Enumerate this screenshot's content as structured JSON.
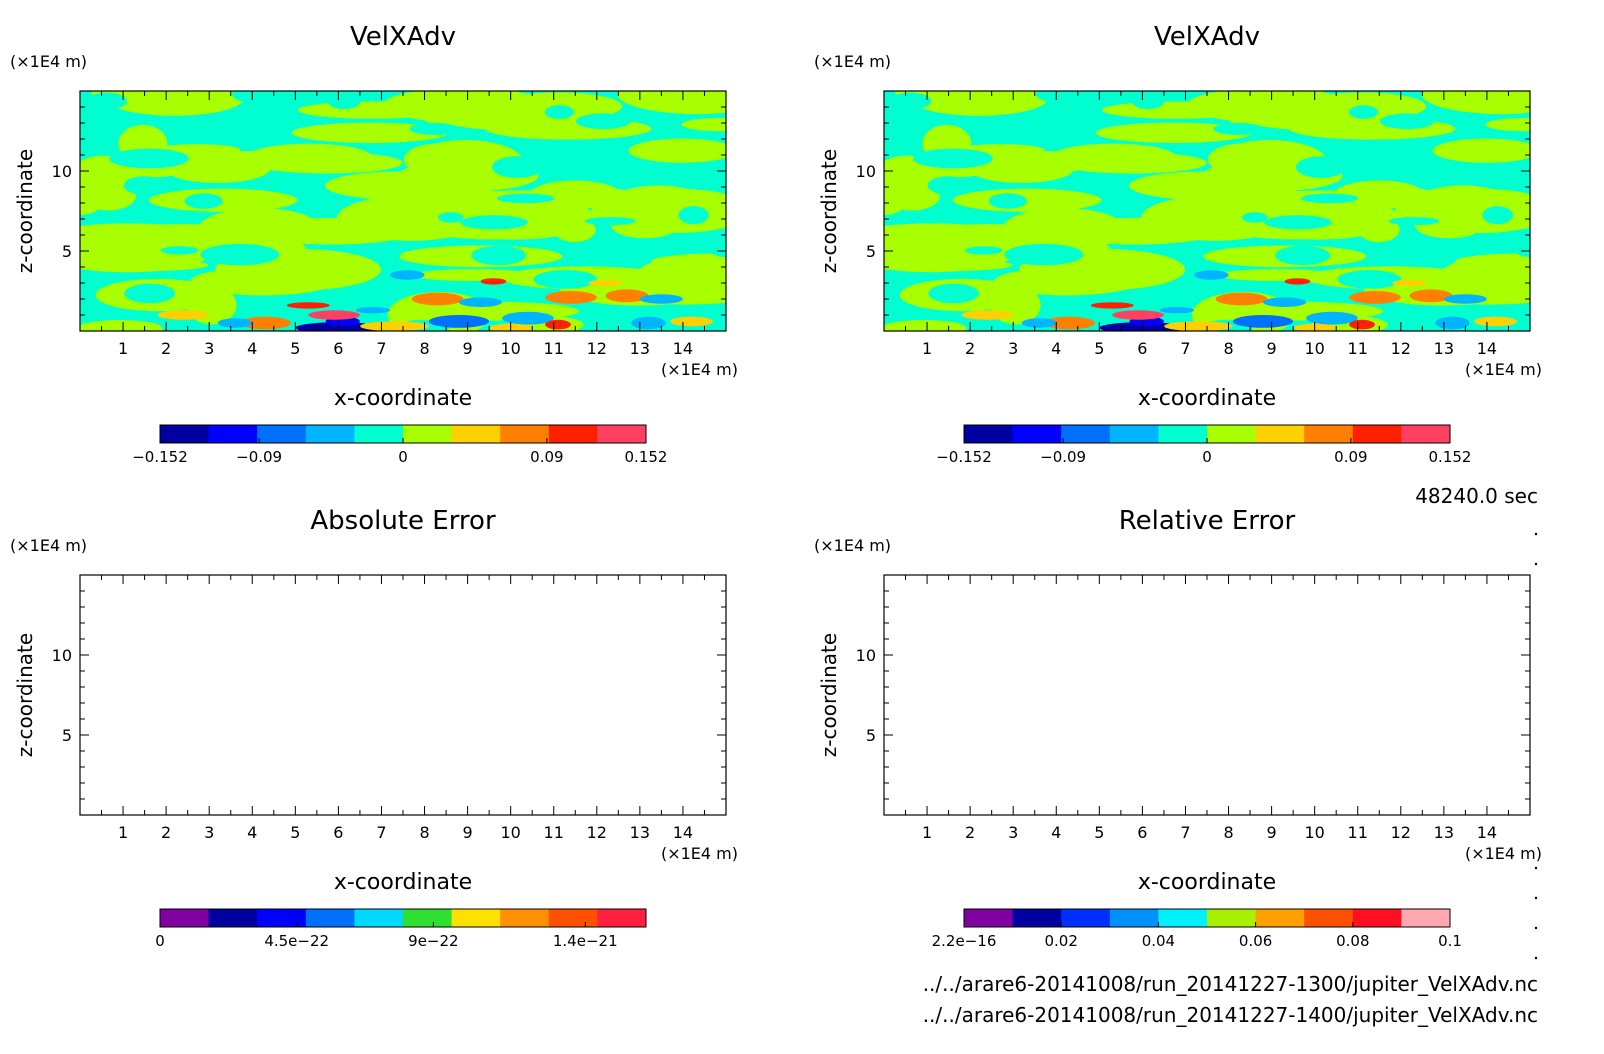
{
  "footer": {
    "time": "48240.0 sec",
    "file1": "../../arare6-20141008/run_20141227-1300/jupiter_VelXAdv.nc",
    "file2": "../../arare6-20141008/run_20141227-1400/jupiter_VelXAdv.nc"
  },
  "chart_data": [
    {
      "type": "heatmap",
      "title": "VelXAdv",
      "xlabel": "x-coordinate",
      "ylabel": "z-coordinate",
      "x_unit_label": "(×1E4 m)",
      "y_unit_label": "(×1E4 m)",
      "xlim": [
        0,
        15
      ],
      "ylim": [
        0,
        15
      ],
      "x_ticks": [
        "1",
        "2",
        "3",
        "4",
        "5",
        "6",
        "7",
        "8",
        "9",
        "10",
        "11",
        "12",
        "13",
        "14"
      ],
      "y_ticks": [
        "5",
        "10"
      ],
      "colorbar": {
        "colors": [
          "#0000a0",
          "#0000ff",
          "#0070ff",
          "#00b4ff",
          "#00ffd0",
          "#a8ff00",
          "#ffd000",
          "#ff8000",
          "#ff2000",
          "#ff4060"
        ],
        "tick_labels": [
          "−0.152",
          "−0.09",
          "0",
          "0.09",
          "0.152"
        ],
        "tick_values": [
          -0.152,
          -0.09,
          0,
          0.09,
          0.152
        ],
        "range": [
          -0.152,
          0.152
        ]
      },
      "field": "turbulent",
      "seed": 7
    },
    {
      "type": "heatmap",
      "title": "VelXAdv",
      "xlabel": "x-coordinate",
      "ylabel": "z-coordinate",
      "x_unit_label": "(×1E4 m)",
      "y_unit_label": "(×1E4 m)",
      "xlim": [
        0,
        15
      ],
      "ylim": [
        0,
        15
      ],
      "x_ticks": [
        "1",
        "2",
        "3",
        "4",
        "5",
        "6",
        "7",
        "8",
        "9",
        "10",
        "11",
        "12",
        "13",
        "14"
      ],
      "y_ticks": [
        "5",
        "10"
      ],
      "colorbar": {
        "colors": [
          "#0000a0",
          "#0000ff",
          "#0070ff",
          "#00b4ff",
          "#00ffd0",
          "#a8ff00",
          "#ffd000",
          "#ff8000",
          "#ff2000",
          "#ff4060"
        ],
        "tick_labels": [
          "−0.152",
          "−0.09",
          "0",
          "0.09",
          "0.152"
        ],
        "tick_values": [
          -0.152,
          -0.09,
          0,
          0.09,
          0.152
        ],
        "range": [
          -0.152,
          0.152
        ]
      },
      "field": "turbulent",
      "seed": 7
    },
    {
      "type": "heatmap",
      "title": "Absolute Error",
      "xlabel": "x-coordinate",
      "ylabel": "z-coordinate",
      "x_unit_label": "(×1E4 m)",
      "y_unit_label": "(×1E4 m)",
      "xlim": [
        0,
        15
      ],
      "ylim": [
        0,
        15
      ],
      "x_ticks": [
        "1",
        "2",
        "3",
        "4",
        "5",
        "6",
        "7",
        "8",
        "9",
        "10",
        "11",
        "12",
        "13",
        "14"
      ],
      "y_ticks": [
        "5",
        "10"
      ],
      "colorbar": {
        "colors": [
          "#8000a0",
          "#0000a0",
          "#0000ff",
          "#0070ff",
          "#00d8ff",
          "#30e030",
          "#ffe000",
          "#ff9000",
          "#ff5000",
          "#ff2040"
        ],
        "tick_labels": [
          "0",
          "4.5e−22",
          "9e−22",
          "1.4e−21"
        ],
        "tick_values": [
          0,
          4.5e-22,
          9e-22,
          1.4e-21
        ],
        "range": [
          0,
          1.6e-21
        ]
      },
      "field": "blank"
    },
    {
      "type": "heatmap",
      "title": "Relative Error",
      "xlabel": "x-coordinate",
      "ylabel": "z-coordinate",
      "x_unit_label": "(×1E4 m)",
      "y_unit_label": "(×1E4 m)",
      "xlim": [
        0,
        15
      ],
      "ylim": [
        0,
        15
      ],
      "x_ticks": [
        "1",
        "2",
        "3",
        "4",
        "5",
        "6",
        "7",
        "8",
        "9",
        "10",
        "11",
        "12",
        "13",
        "14"
      ],
      "y_ticks": [
        "5",
        "10"
      ],
      "colorbar": {
        "colors": [
          "#8000a0",
          "#0000a0",
          "#0030ff",
          "#0090ff",
          "#00f0ff",
          "#a8f000",
          "#ffa000",
          "#ff5000",
          "#ff1020",
          "#ffa8b0"
        ],
        "tick_labels": [
          "2.2e−16",
          "0.02",
          "0.04",
          "0.06",
          "0.08",
          "0.1"
        ],
        "tick_values": [
          2.2e-16,
          0.02,
          0.04,
          0.06,
          0.08,
          0.1
        ],
        "range": [
          0,
          0.1
        ]
      },
      "field": "blank"
    }
  ]
}
